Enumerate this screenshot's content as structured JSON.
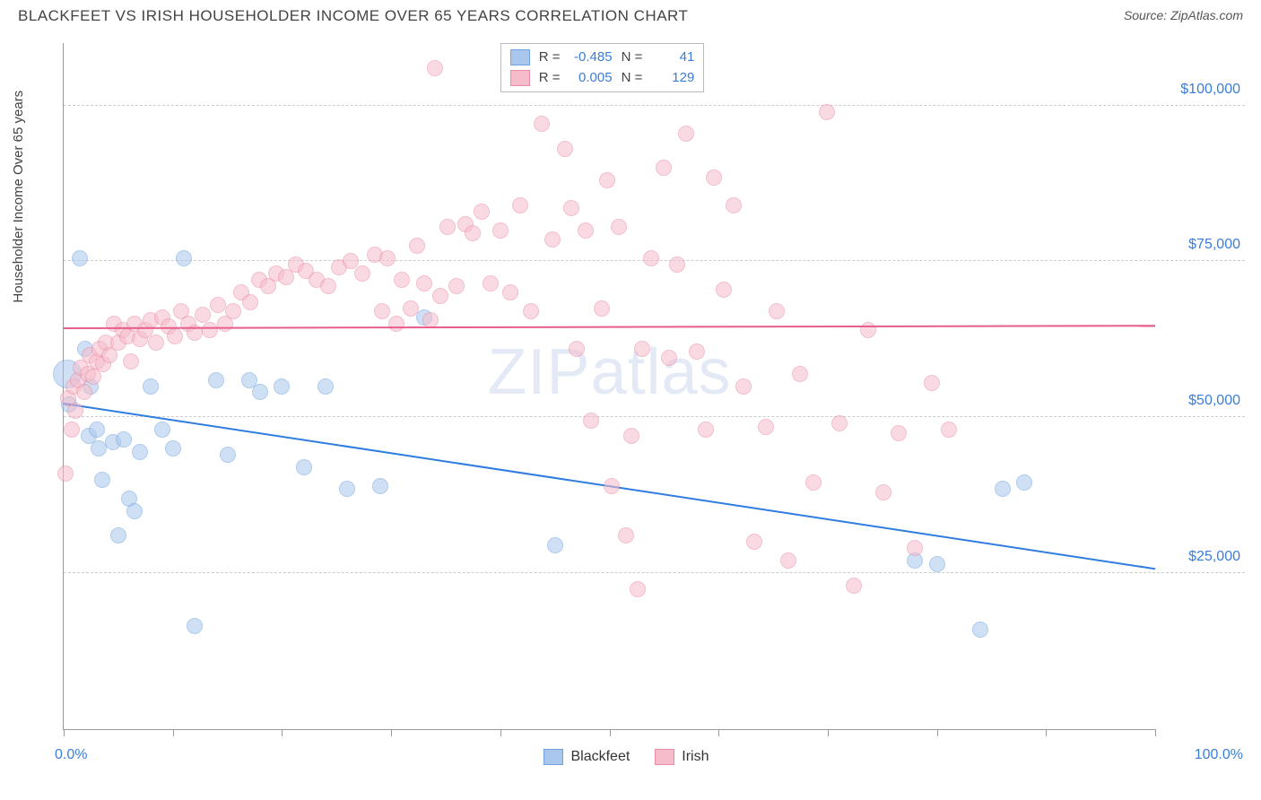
{
  "title": "BLACKFEET VS IRISH HOUSEHOLDER INCOME OVER 65 YEARS CORRELATION CHART",
  "source_label": "Source: ",
  "source_value": "ZipAtlas.com",
  "watermark": "ZIPatlas",
  "ylabel": "Householder Income Over 65 years",
  "chart": {
    "type": "scatter",
    "xlim": [
      0,
      100
    ],
    "ylim": [
      0,
      110000
    ],
    "x_tick_positions": [
      0,
      10,
      20,
      30,
      40,
      50,
      60,
      70,
      80,
      90,
      100
    ],
    "x_label_min": "0.0%",
    "x_label_max": "100.0%",
    "y_gridlines": [
      25000,
      50000,
      75000,
      100000
    ],
    "y_tick_labels": [
      "$25,000",
      "$50,000",
      "$75,000",
      "$100,000"
    ],
    "background_color": "#ffffff",
    "grid_color": "#cccccc",
    "axis_color": "#999999",
    "text_color": "#444444",
    "value_color": "#3b7dd8",
    "marker_radius": 9,
    "marker_opacity": 0.55,
    "series": [
      {
        "name": "Blackfeet",
        "fill": "#a9c7ec",
        "stroke": "#6fa3e0",
        "r_label": "R =",
        "r_value": "-0.485",
        "n_label": "N =",
        "n_value": "41",
        "trend": {
          "y_at_x0": 52000,
          "y_at_x100": 25500,
          "color": "#2f7de0",
          "width": 2
        },
        "points": [
          [
            0.3,
            57000,
            16
          ],
          [
            0.5,
            52000,
            9
          ],
          [
            1.5,
            75500,
            9
          ],
          [
            2,
            61000,
            9
          ],
          [
            2.3,
            47000,
            9
          ],
          [
            2.5,
            55000,
            9
          ],
          [
            3,
            48000,
            9
          ],
          [
            3.2,
            45000,
            9
          ],
          [
            3.5,
            40000,
            9
          ],
          [
            4.5,
            46000,
            9
          ],
          [
            5,
            31000,
            9
          ],
          [
            5.5,
            46500,
            9
          ],
          [
            6,
            37000,
            9
          ],
          [
            6.5,
            35000,
            9
          ],
          [
            7,
            44500,
            9
          ],
          [
            8,
            55000,
            9
          ],
          [
            9,
            48000,
            9
          ],
          [
            10,
            45000,
            9
          ],
          [
            11,
            75500,
            9
          ],
          [
            12,
            16500,
            9
          ],
          [
            14,
            56000,
            9
          ],
          [
            15,
            44000,
            9
          ],
          [
            17,
            56000,
            9
          ],
          [
            18,
            54000,
            9
          ],
          [
            20,
            55000,
            9
          ],
          [
            22,
            42000,
            9
          ],
          [
            24,
            55000,
            9
          ],
          [
            26,
            38500,
            9
          ],
          [
            29,
            39000,
            9
          ],
          [
            33,
            66000,
            9
          ],
          [
            45,
            29500,
            9
          ],
          [
            78,
            27000,
            9
          ],
          [
            80,
            26500,
            9
          ],
          [
            84,
            16000,
            9
          ],
          [
            86,
            38500,
            9
          ],
          [
            88,
            39500,
            9
          ]
        ]
      },
      {
        "name": "Irish",
        "fill": "#f6bccb",
        "stroke": "#e98ba5",
        "r_label": "R =",
        "r_value": "0.005",
        "n_label": "N =",
        "n_value": "129",
        "trend": {
          "y_at_x0": 64200,
          "y_at_x100": 64600,
          "color": "#e75d8e",
          "width": 2
        },
        "points": [
          [
            0.2,
            41000,
            9
          ],
          [
            0.4,
            53000,
            9
          ],
          [
            0.7,
            48000,
            9
          ],
          [
            0.9,
            55000,
            9
          ],
          [
            1.1,
            51000,
            9
          ],
          [
            1.3,
            56000,
            9
          ],
          [
            1.6,
            58000,
            9
          ],
          [
            1.9,
            54000,
            9
          ],
          [
            2.2,
            57000,
            9
          ],
          [
            2.4,
            60000,
            9
          ],
          [
            2.7,
            56500,
            9
          ],
          [
            3,
            59000,
            9
          ],
          [
            3.3,
            61000,
            9
          ],
          [
            3.6,
            58500,
            9
          ],
          [
            3.9,
            62000,
            9
          ],
          [
            4.2,
            60000,
            9
          ],
          [
            4.6,
            65000,
            9
          ],
          [
            5,
            62000,
            9
          ],
          [
            5.4,
            64000,
            9
          ],
          [
            5.8,
            63000,
            9
          ],
          [
            6.2,
            59000,
            9
          ],
          [
            6.5,
            65000,
            9
          ],
          [
            7,
            62500,
            9
          ],
          [
            7.5,
            64000,
            9
          ],
          [
            8,
            65500,
            9
          ],
          [
            8.5,
            62000,
            9
          ],
          [
            9,
            66000,
            9
          ],
          [
            9.6,
            64500,
            9
          ],
          [
            10.2,
            63000,
            9
          ],
          [
            10.8,
            67000,
            9
          ],
          [
            11.4,
            65000,
            9
          ],
          [
            12,
            63500,
            9
          ],
          [
            12.7,
            66500,
            9
          ],
          [
            13.4,
            64000,
            9
          ],
          [
            14.1,
            68000,
            9
          ],
          [
            14.8,
            65000,
            9
          ],
          [
            15.5,
            67000,
            9
          ],
          [
            16.3,
            70000,
            9
          ],
          [
            17.1,
            68500,
            9
          ],
          [
            17.9,
            72000,
            9
          ],
          [
            18.7,
            71000,
            9
          ],
          [
            19.5,
            73000,
            9
          ],
          [
            20.4,
            72500,
            9
          ],
          [
            21.3,
            74500,
            9
          ],
          [
            22.2,
            73500,
            9
          ],
          [
            23.2,
            72000,
            9
          ],
          [
            24.2,
            71000,
            9
          ],
          [
            25.2,
            74000,
            9
          ],
          [
            26.3,
            75000,
            9
          ],
          [
            27.4,
            73000,
            9
          ],
          [
            28.5,
            76000,
            9
          ],
          [
            29.2,
            67000,
            9
          ],
          [
            29.7,
            75500,
            9
          ],
          [
            30.5,
            65000,
            9
          ],
          [
            31,
            72000,
            9
          ],
          [
            31.8,
            67500,
            9
          ],
          [
            32.4,
            77500,
            9
          ],
          [
            33,
            71500,
            9
          ],
          [
            33.6,
            65500,
            9
          ],
          [
            34,
            106000,
            9
          ],
          [
            34.5,
            69500,
            9
          ],
          [
            35.2,
            80500,
            9
          ],
          [
            36,
            71000,
            9
          ],
          [
            36.8,
            81000,
            9
          ],
          [
            37.5,
            79500,
            9
          ],
          [
            38.3,
            83000,
            9
          ],
          [
            39.1,
            71500,
            9
          ],
          [
            40,
            80000,
            9
          ],
          [
            40.9,
            70000,
            9
          ],
          [
            41.8,
            84000,
            9
          ],
          [
            42.8,
            67000,
            9
          ],
          [
            43.8,
            97000,
            9
          ],
          [
            44.8,
            78500,
            9
          ],
          [
            45.9,
            93000,
            9
          ],
          [
            46.5,
            83500,
            9
          ],
          [
            47,
            61000,
            9
          ],
          [
            47.8,
            80000,
            9
          ],
          [
            48.3,
            49500,
            9
          ],
          [
            49.3,
            67500,
            9
          ],
          [
            49.8,
            88000,
            9
          ],
          [
            50.2,
            39000,
            9
          ],
          [
            50.9,
            80500,
            9
          ],
          [
            51.5,
            31000,
            9
          ],
          [
            52,
            47000,
            9
          ],
          [
            52.6,
            22500,
            9
          ],
          [
            53,
            61000,
            9
          ],
          [
            53.8,
            75500,
            9
          ],
          [
            55,
            90000,
            9
          ],
          [
            55.5,
            59500,
            9
          ],
          [
            56.2,
            74500,
            9
          ],
          [
            57,
            95500,
            9
          ],
          [
            58,
            60500,
            9
          ],
          [
            58.8,
            48000,
            9
          ],
          [
            59.6,
            88500,
            9
          ],
          [
            60.5,
            70500,
            9
          ],
          [
            61.4,
            84000,
            9
          ],
          [
            62.3,
            55000,
            9
          ],
          [
            63.3,
            30000,
            9
          ],
          [
            64.3,
            48500,
            9
          ],
          [
            65.3,
            67000,
            9
          ],
          [
            66.4,
            27000,
            9
          ],
          [
            67.5,
            57000,
            9
          ],
          [
            68.7,
            39500,
            9
          ],
          [
            69.9,
            99000,
            9
          ],
          [
            71.1,
            49000,
            9
          ],
          [
            72.4,
            23000,
            9
          ],
          [
            73.7,
            64000,
            9
          ],
          [
            75.1,
            38000,
            9
          ],
          [
            76.5,
            47500,
            9
          ],
          [
            78,
            29000,
            9
          ],
          [
            79.5,
            55500,
            9
          ],
          [
            81.1,
            48000,
            9
          ]
        ]
      }
    ]
  }
}
